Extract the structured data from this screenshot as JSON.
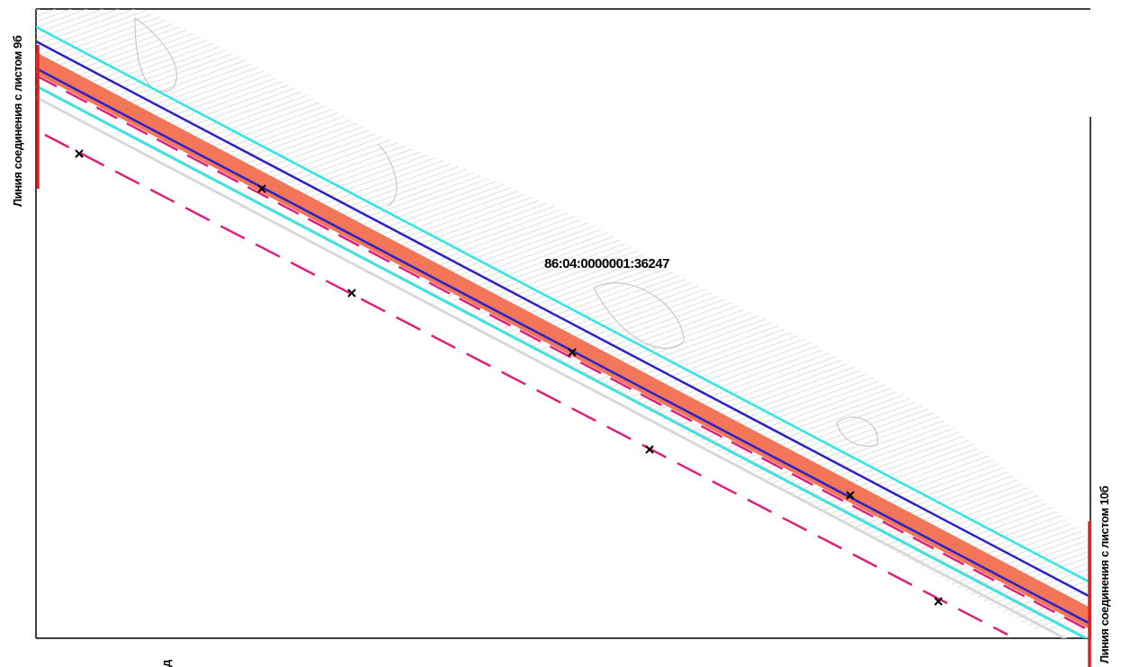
{
  "map": {
    "parcel_id": "86:04:0000001:36247",
    "join_left": "Линия соединения с листом 9б",
    "join_right": "Линия соединения с листом 10б",
    "north_mark": "д"
  },
  "colors": {
    "frame": "#000000",
    "cyan": "#2ee6e6",
    "blue": "#2a22c8",
    "orange": "#f26a4a",
    "magenta": "#e0207a",
    "red": "#e02020",
    "gray_line": "#cfcfcf",
    "hatch": "#d6d6d6",
    "marker": "#000000"
  },
  "icons": {
    "survey_point": "cross-marker-icon"
  }
}
